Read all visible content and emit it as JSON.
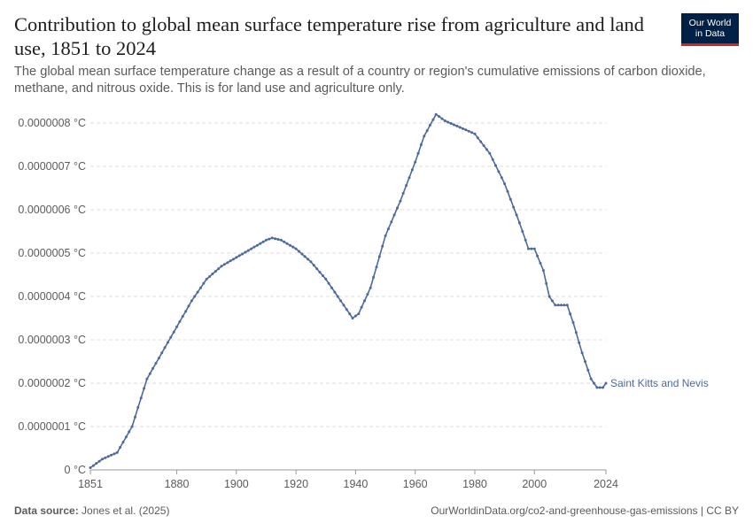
{
  "header": {
    "title": "Contribution to global mean surface temperature rise from agriculture and land use, 1851 to 2024",
    "subtitle": "The global mean surface temperature change as a result of a country or region's cumulative emissions of carbon dioxide, methane, and nitrous oxide. This is for land use and agriculture only.",
    "logo_line1": "Our World",
    "logo_line2": "in Data"
  },
  "footer": {
    "source_label": "Data source:",
    "source_text": "Jones et al. (2025)",
    "right_text": "OurWorldinData.org/co2-and-greenhouse-gas-emissions | CC BY"
  },
  "colors": {
    "series": "#4c6a9c",
    "grid": "#dddddd",
    "axis_text": "#5b5b5b"
  },
  "chart_data": {
    "type": "line",
    "title": "Contribution to global mean surface temperature rise from agriculture and land use, 1851 to 2024",
    "xlabel": "",
    "ylabel": "",
    "xlim": [
      1851,
      2024
    ],
    "ylim": [
      0,
      8e-07
    ],
    "y_ticks": [
      {
        "value": 0,
        "label": "0 °C"
      },
      {
        "value": 1e-07,
        "label": "0.0000001 °C"
      },
      {
        "value": 2e-07,
        "label": "0.0000002 °C"
      },
      {
        "value": 3e-07,
        "label": "0.0000003 °C"
      },
      {
        "value": 4e-07,
        "label": "0.0000004 °C"
      },
      {
        "value": 5e-07,
        "label": "0.0000005 °C"
      },
      {
        "value": 6e-07,
        "label": "0.0000006 °C"
      },
      {
        "value": 7e-07,
        "label": "0.0000007 °C"
      },
      {
        "value": 8e-07,
        "label": "0.0000008 °C"
      }
    ],
    "x_ticks": [
      {
        "value": 1851,
        "label": "1851"
      },
      {
        "value": 1880,
        "label": "1880"
      },
      {
        "value": 1900,
        "label": "1900"
      },
      {
        "value": 1920,
        "label": "1920"
      },
      {
        "value": 1940,
        "label": "1940"
      },
      {
        "value": 1960,
        "label": "1960"
      },
      {
        "value": 1980,
        "label": "1980"
      },
      {
        "value": 2000,
        "label": "2000"
      },
      {
        "value": 2024,
        "label": "2024"
      }
    ],
    "grid": true,
    "series": [
      {
        "name": "Saint Kitts and Nevis",
        "anchors": [
          [
            1851,
            5e-09
          ],
          [
            1855,
            2.5e-08
          ],
          [
            1860,
            4e-08
          ],
          [
            1865,
            1e-07
          ],
          [
            1870,
            2.1e-07
          ],
          [
            1875,
            2.7e-07
          ],
          [
            1880,
            3.3e-07
          ],
          [
            1885,
            3.9e-07
          ],
          [
            1890,
            4.4e-07
          ],
          [
            1895,
            4.7e-07
          ],
          [
            1900,
            4.9e-07
          ],
          [
            1905,
            5.1e-07
          ],
          [
            1910,
            5.3e-07
          ],
          [
            1912,
            5.35e-07
          ],
          [
            1915,
            5.3e-07
          ],
          [
            1920,
            5.1e-07
          ],
          [
            1925,
            4.8e-07
          ],
          [
            1930,
            4.4e-07
          ],
          [
            1935,
            3.9e-07
          ],
          [
            1939,
            3.5e-07
          ],
          [
            1941,
            3.6e-07
          ],
          [
            1945,
            4.2e-07
          ],
          [
            1950,
            5.4e-07
          ],
          [
            1955,
            6.2e-07
          ],
          [
            1960,
            7.1e-07
          ],
          [
            1963,
            7.7e-07
          ],
          [
            1967,
            8.2e-07
          ],
          [
            1970,
            8.05e-07
          ],
          [
            1975,
            7.9e-07
          ],
          [
            1980,
            7.75e-07
          ],
          [
            1985,
            7.3e-07
          ],
          [
            1990,
            6.6e-07
          ],
          [
            1995,
            5.7e-07
          ],
          [
            1998,
            5.1e-07
          ],
          [
            2000,
            5.1e-07
          ],
          [
            2003,
            4.6e-07
          ],
          [
            2005,
            4e-07
          ],
          [
            2007,
            3.8e-07
          ],
          [
            2009,
            3.8e-07
          ],
          [
            2011,
            3.8e-07
          ],
          [
            2013,
            3.4e-07
          ],
          [
            2016,
            2.7e-07
          ],
          [
            2019,
            2.1e-07
          ],
          [
            2021,
            1.9e-07
          ],
          [
            2023,
            1.9e-07
          ],
          [
            2024,
            2e-07
          ]
        ]
      }
    ]
  }
}
